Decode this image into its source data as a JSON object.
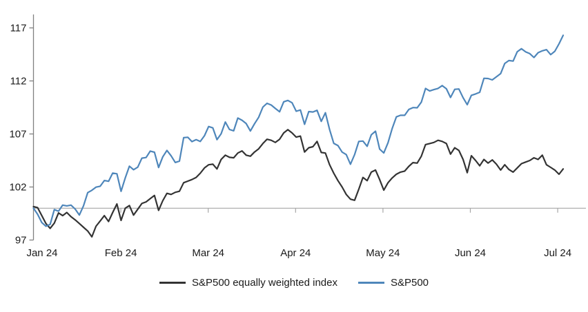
{
  "chart_data": {
    "type": "line",
    "title": "",
    "xlabel": "",
    "ylabel": "",
    "x_tick_labels": [
      "Jan 24",
      "Feb 24",
      "Mar 24",
      "Apr 24",
      "May 24",
      "Jun 24",
      "Jul 24"
    ],
    "y_ticks": [
      97,
      102,
      107,
      112,
      117
    ],
    "ylim": [
      97,
      117
    ],
    "baseline_value": 100,
    "grid": "off",
    "legend_position": "bottom-center",
    "axis_color": "#808080",
    "baseline_color": "#a6a6a6",
    "series": [
      {
        "name": "S&P500 equally weighted index",
        "color": "#333333",
        "values": [
          100.15,
          100.05,
          99.3,
          98.55,
          98.1,
          98.6,
          99.55,
          99.3,
          99.6,
          99.2,
          98.9,
          98.55,
          98.2,
          97.85,
          97.3,
          98.3,
          98.8,
          99.3,
          98.75,
          99.6,
          100.4,
          98.85,
          100.0,
          100.25,
          99.35,
          99.9,
          100.45,
          100.6,
          100.9,
          101.2,
          99.8,
          100.7,
          101.4,
          101.3,
          101.5,
          101.6,
          102.4,
          102.55,
          102.7,
          102.9,
          103.3,
          103.8,
          104.1,
          104.15,
          103.7,
          104.6,
          105.0,
          104.8,
          104.75,
          105.2,
          105.4,
          105.0,
          104.9,
          105.3,
          105.6,
          106.1,
          106.5,
          106.4,
          106.2,
          106.5,
          107.1,
          107.4,
          107.1,
          106.7,
          106.8,
          105.3,
          105.7,
          105.8,
          106.3,
          105.25,
          105.2,
          104.1,
          103.3,
          102.6,
          102.0,
          101.3,
          100.85,
          100.75,
          101.8,
          102.9,
          102.6,
          103.4,
          103.6,
          102.7,
          101.7,
          102.4,
          102.85,
          103.2,
          103.4,
          103.5,
          103.95,
          104.3,
          104.25,
          104.9,
          106.0,
          106.1,
          106.2,
          106.4,
          106.3,
          106.1,
          105.1,
          105.7,
          105.45,
          104.6,
          103.35,
          104.95,
          104.5,
          104.0,
          104.6,
          104.25,
          104.55,
          104.15,
          103.6,
          104.1,
          103.65,
          103.4,
          103.8,
          104.2,
          104.35,
          104.5,
          104.75,
          104.6,
          105.0,
          104.1,
          103.85,
          103.6,
          103.2,
          103.7
        ]
      },
      {
        "name": "S&P500",
        "color": "#4e86ba",
        "values": [
          100.0,
          99.43,
          98.64,
          98.3,
          98.48,
          99.87,
          99.72,
          100.29,
          100.22,
          100.29,
          99.92,
          99.36,
          100.23,
          101.47,
          101.69,
          101.99,
          102.07,
          102.61,
          102.54,
          103.31,
          103.25,
          101.59,
          102.86,
          103.96,
          103.63,
          103.87,
          104.72,
          104.78,
          105.38,
          105.28,
          103.84,
          104.84,
          105.45,
          104.94,
          104.31,
          104.44,
          106.65,
          106.69,
          106.28,
          106.46,
          106.29,
          106.84,
          107.7,
          107.57,
          106.47,
          107.02,
          108.13,
          107.42,
          107.3,
          108.5,
          108.29,
          107.98,
          107.28,
          107.96,
          108.57,
          109.53,
          109.89,
          109.73,
          109.4,
          109.09,
          110.03,
          110.16,
          109.94,
          109.14,
          109.26,
          107.91,
          109.11,
          109.07,
          109.23,
          108.19,
          109.0,
          107.41,
          106.12,
          105.9,
          105.29,
          105.06,
          104.14,
          105.05,
          106.3,
          106.33,
          105.84,
          106.92,
          107.26,
          105.57,
          105.21,
          106.17,
          107.5,
          108.61,
          108.76,
          108.76,
          109.31,
          109.49,
          109.47,
          110.0,
          111.29,
          111.05,
          111.18,
          111.29,
          111.56,
          111.26,
          110.44,
          111.21,
          111.24,
          110.42,
          109.76,
          110.64,
          110.77,
          110.93,
          112.25,
          112.23,
          112.1,
          112.39,
          112.69,
          113.65,
          113.92,
          113.87,
          114.75,
          115.04,
          114.74,
          114.57,
          114.21,
          114.66,
          114.84,
          114.95,
          114.48,
          114.79,
          115.5,
          116.3
        ]
      }
    ]
  }
}
